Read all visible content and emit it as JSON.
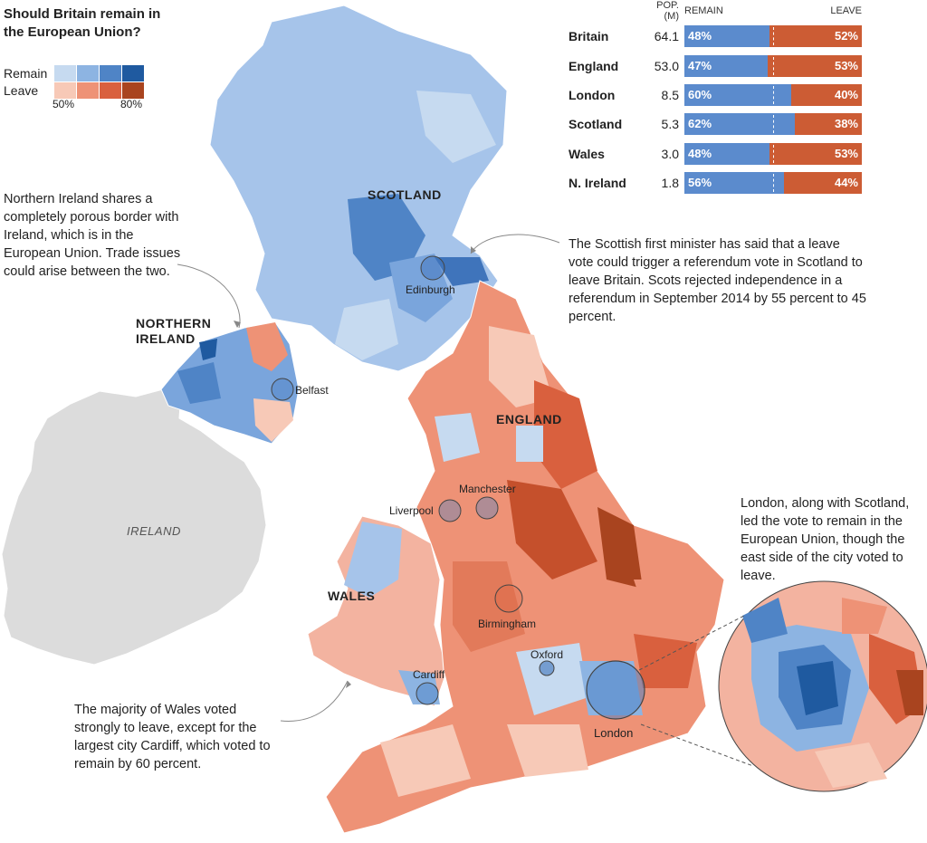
{
  "title": "Should Britain remain in the European Union?",
  "legend": {
    "remain_label": "Remain",
    "leave_label": "Leave",
    "remain_colors": [
      "#c6daf0",
      "#8db4e2",
      "#4f84c6",
      "#1f5aa0"
    ],
    "leave_colors": [
      "#f7c9b7",
      "#ee9276",
      "#d9603e",
      "#a9441f"
    ],
    "tick_low": "50%",
    "tick_high": "80%"
  },
  "results_table": {
    "col_pop": "POP. (M)",
    "col_remain": "REMAIN",
    "col_leave": "LEAVE",
    "rows": [
      {
        "name": "Britain",
        "pop": "64.1",
        "remain": "48%",
        "leave": "52%",
        "remain_share": 0.48
      },
      {
        "name": "England",
        "pop": "53.0",
        "remain": "47%",
        "leave": "53%",
        "remain_share": 0.47
      },
      {
        "name": "London",
        "pop": "8.5",
        "remain": "60%",
        "leave": "40%",
        "remain_share": 0.6
      },
      {
        "name": "Scotland",
        "pop": "5.3",
        "remain": "62%",
        "leave": "38%",
        "remain_share": 0.62
      },
      {
        "name": "Wales",
        "pop": "3.0",
        "remain": "48%",
        "leave": "53%",
        "remain_share": 0.48
      },
      {
        "name": "N. Ireland",
        "pop": "1.8",
        "remain": "56%",
        "leave": "44%",
        "remain_share": 0.56
      }
    ]
  },
  "annotations": {
    "northern_ireland": "Northern Ireland shares a completely porous border with Ireland, which is in the European Union. Trade issues could arise between the two.",
    "scotland": "The Scottish first minister has said that a leave vote could trigger a referendum vote in Scotland to leave Britain. Scots rejected independence in a referendum in September 2014 by 55 percent to 45 percent.",
    "london": "London, along with Scotland, led the vote to remain in the European Union, though the east side of the city voted to leave.",
    "wales": "The majority of Wales voted strongly to leave, except for the largest city Cardiff, which voted to remain by 60 percent."
  },
  "regions": {
    "scotland": "SCOTLAND",
    "northern_ireland_line1": "NORTHERN",
    "northern_ireland_line2": "IRELAND",
    "england": "ENGLAND",
    "wales": "WALES",
    "ireland": "IRELAND"
  },
  "cities": {
    "edinburgh": "Edinburgh",
    "belfast": "Belfast",
    "liverpool": "Liverpool",
    "manchester": "Manchester",
    "birmingham": "Birmingham",
    "oxford": "Oxford",
    "cardiff": "Cardiff",
    "london": "London"
  }
}
